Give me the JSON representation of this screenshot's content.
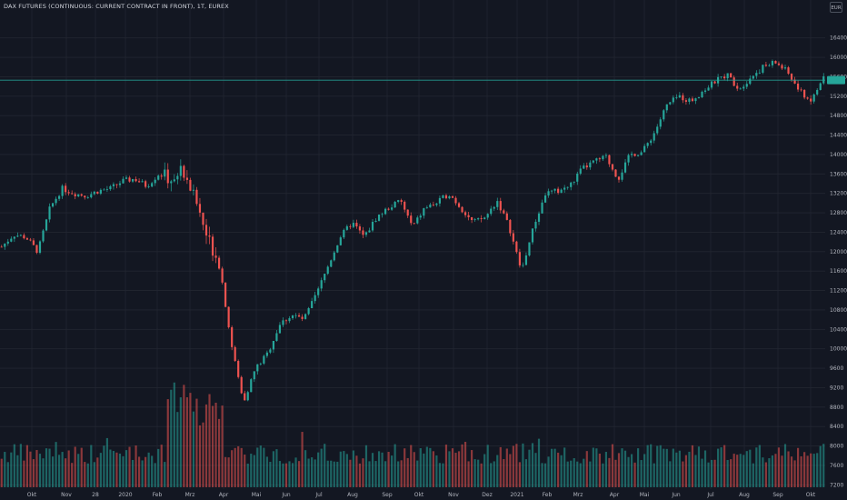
{
  "chart_data": {
    "type": "candlestick",
    "title": "DAX FUTURES (CONTINUOUS: CURRENT CONTRACT IN FRONT), 1T, EUREX",
    "currency": "EUR",
    "xlabel": "",
    "ylabel": "",
    "y_axis": {
      "position": "right",
      "ticks": [
        7200,
        7600,
        8000,
        8400,
        8800,
        9200,
        9600,
        10000,
        10400,
        10800,
        11200,
        11600,
        12000,
        12400,
        12800,
        13200,
        13600,
        14000,
        14400,
        14800,
        15200,
        15600,
        16000,
        16400
      ],
      "ylim": [
        7150,
        16600
      ]
    },
    "x_axis": {
      "labels": [
        "Okt",
        "Nov",
        "28",
        "2020",
        "Feb",
        "Mrz",
        "Apr",
        "Mai",
        "Jun",
        "Jul",
        "Aug",
        "Sep",
        "Okt",
        "Nov",
        "Dez",
        "2021",
        "Feb",
        "Mrz",
        "Apr",
        "Mai",
        "Jun",
        "Jul",
        "Aug",
        "Sep",
        "Okt"
      ]
    },
    "grid": true,
    "last_price_line": 15530,
    "colors": {
      "up": "#26a69a",
      "down": "#ef5350",
      "background": "#131722",
      "grid": "#222631",
      "text": "#b2b5be",
      "last_price": "#26a69a"
    },
    "series": [
      {
        "type": "price",
        "points": [
          [
            "Okt",
            12100
          ],
          [
            "Okt",
            12350
          ],
          [
            "Okt",
            12300
          ],
          [
            "Okt",
            12000
          ],
          [
            "Nov",
            12900
          ],
          [
            "Nov",
            13300
          ],
          [
            "Nov",
            13200
          ],
          [
            "Nov",
            13150
          ],
          [
            "28",
            13250
          ],
          [
            "28",
            13300
          ],
          [
            "28",
            13450
          ],
          [
            "2020",
            13500
          ],
          [
            "2020",
            13350
          ],
          [
            "2020",
            13600
          ],
          [
            "Feb",
            13500
          ],
          [
            "Feb",
            13700
          ],
          [
            "Feb",
            13100
          ],
          [
            "Feb",
            12300
          ],
          [
            "Mrz",
            11800
          ],
          [
            "Mrz",
            10100
          ],
          [
            "Mrz",
            8900
          ],
          [
            "Mrz",
            9600
          ],
          [
            "Apr",
            9900
          ],
          [
            "Apr",
            10500
          ],
          [
            "Apr",
            10700
          ],
          [
            "Mai",
            10600
          ],
          [
            "Mai",
            11100
          ],
          [
            "Mai",
            11700
          ],
          [
            "Jun",
            12300
          ],
          [
            "Jun",
            12600
          ],
          [
            "Jun",
            12300
          ],
          [
            "Jul",
            12700
          ],
          [
            "Jul",
            12900
          ],
          [
            "Jul",
            13050
          ],
          [
            "Aug",
            12500
          ],
          [
            "Aug",
            12900
          ],
          [
            "Aug",
            13000
          ],
          [
            "Sep",
            13200
          ],
          [
            "Sep",
            12900
          ],
          [
            "Sep",
            12600
          ],
          [
            "Okt",
            12700
          ],
          [
            "Okt",
            13050
          ],
          [
            "Okt",
            12500
          ],
          [
            "Nov",
            11600
          ],
          [
            "Nov",
            12500
          ],
          [
            "Nov",
            13200
          ],
          [
            "Dez",
            13250
          ],
          [
            "Dez",
            13350
          ],
          [
            "Dez",
            13700
          ],
          [
            "2021",
            13850
          ],
          [
            "2021",
            13950
          ],
          [
            "Feb",
            13500
          ],
          [
            "Feb",
            14000
          ],
          [
            "Mrz",
            14050
          ],
          [
            "Mrz",
            14450
          ],
          [
            "Apr",
            15000
          ],
          [
            "Apr",
            15200
          ],
          [
            "Mai",
            15100
          ],
          [
            "Mai",
            15300
          ],
          [
            "Jun",
            15500
          ],
          [
            "Jun",
            15650
          ],
          [
            "Jul",
            15350
          ],
          [
            "Jul",
            15600
          ],
          [
            "Aug",
            15800
          ],
          [
            "Aug",
            15900
          ],
          [
            "Sep",
            15700
          ],
          [
            "Sep",
            15300
          ],
          [
            "Okt",
            15100
          ],
          [
            "Okt",
            15600
          ]
        ]
      },
      {
        "type": "volume",
        "scale": "relative"
      }
    ]
  }
}
